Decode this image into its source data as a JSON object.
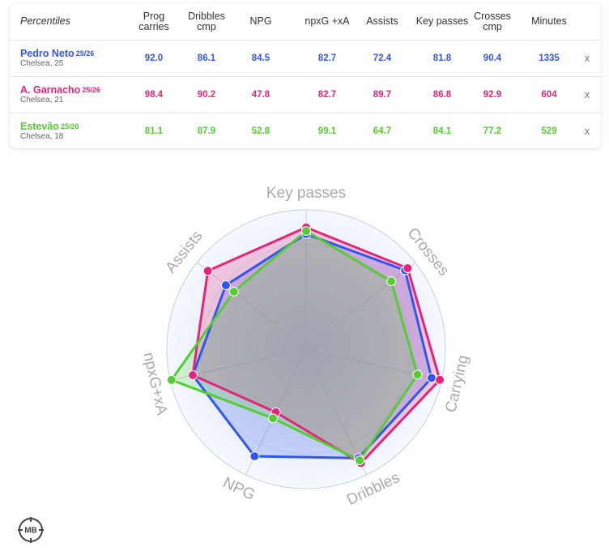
{
  "table": {
    "header": {
      "percentiles_label": "Percentiles",
      "columns": [
        {
          "line1": "Prog",
          "line2": "carries"
        },
        {
          "line1": "Dribbles",
          "line2": "cmp"
        },
        {
          "line1": "NPG",
          "line2": ""
        },
        {
          "line1": "npxG +xA",
          "line2": ""
        },
        {
          "line1": "Assists",
          "line2": ""
        },
        {
          "line1": "Key passes",
          "line2": ""
        },
        {
          "line1": "Crosses",
          "line2": "cmp"
        },
        {
          "line1": "Minutes",
          "line2": ""
        }
      ]
    },
    "rows": [
      {
        "name": "Pedro Neto",
        "season": "25/26",
        "club": "Chelsea, 25",
        "color": "#3355ee",
        "values": [
          "92.0",
          "86.1",
          "84.5",
          "82.7",
          "72.4",
          "81.8",
          "90.4",
          "1335"
        ],
        "remove": "x"
      },
      {
        "name": "A. Garnacho",
        "season": "25/26",
        "club": "Chelsea, 21",
        "color": "#e8247a",
        "values": [
          "98.4",
          "90.2",
          "47.8",
          "82.7",
          "89.7",
          "86.8",
          "92.9",
          "604"
        ],
        "remove": "x"
      },
      {
        "name": "Estevão",
        "season": "25/26",
        "club": "Chelsea, 18",
        "color": "#55cc33",
        "values": [
          "81.1",
          "87.9",
          "52.8",
          "99.1",
          "64.7",
          "84.1",
          "77.2",
          "529"
        ],
        "remove": "x"
      }
    ]
  },
  "chart_data": {
    "type": "radar",
    "axes": [
      "Key passes",
      "Crosses",
      "Carrying",
      "Dribbles",
      "NPG",
      "npxG+xA",
      "Assists"
    ],
    "range": [
      0,
      100
    ],
    "series": [
      {
        "name": "Pedro Neto",
        "color": "#3355ee",
        "values": [
          81.8,
          90.4,
          92.0,
          86.1,
          84.5,
          82.7,
          72.4
        ]
      },
      {
        "name": "A. Garnacho",
        "color": "#e8247a",
        "values": [
          86.8,
          92.9,
          98.4,
          90.2,
          47.8,
          82.7,
          89.7
        ]
      },
      {
        "name": "Estevão",
        "color": "#55cc33",
        "values": [
          84.1,
          77.2,
          81.1,
          87.9,
          52.8,
          99.1,
          64.7
        ]
      }
    ]
  },
  "logo": {
    "text": "MB"
  }
}
